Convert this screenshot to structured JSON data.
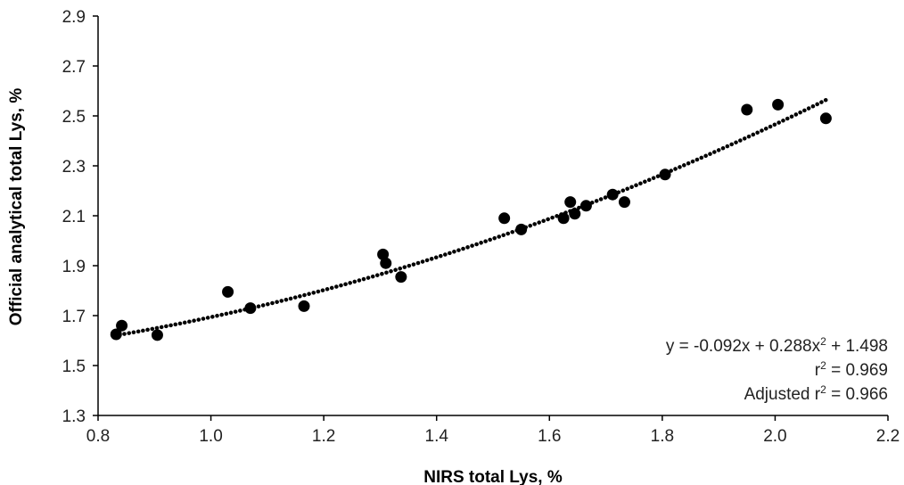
{
  "chart_data": {
    "type": "scatter",
    "title": "",
    "xlabel": "NIRS total Lys, %",
    "ylabel": "Official analytical total Lys, %",
    "xlim": [
      0.8,
      2.2
    ],
    "ylim": [
      1.3,
      2.9
    ],
    "x_ticks": [
      "0.8",
      "1.0",
      "1.2",
      "1.4",
      "1.6",
      "1.8",
      "2.0",
      "2.2"
    ],
    "y_ticks": [
      "1.3",
      "1.5",
      "1.7",
      "1.9",
      "2.1",
      "2.3",
      "2.5",
      "2.7",
      "2.9"
    ],
    "grid": false,
    "legend": false,
    "colors": {
      "points": "#000000",
      "trendline": "#000000",
      "axis": "#000000"
    },
    "series": [
      {
        "points": [
          [
            0.832,
            1.625
          ],
          [
            0.842,
            1.66
          ],
          [
            0.905,
            1.622
          ],
          [
            1.03,
            1.795
          ],
          [
            1.07,
            1.73
          ],
          [
            1.165,
            1.738
          ],
          [
            1.305,
            1.945
          ],
          [
            1.31,
            1.91
          ],
          [
            1.337,
            1.855
          ],
          [
            1.52,
            2.09
          ],
          [
            1.55,
            2.045
          ],
          [
            1.625,
            2.09
          ],
          [
            1.637,
            2.155
          ],
          [
            1.645,
            2.108
          ],
          [
            1.665,
            2.14
          ],
          [
            1.712,
            2.185
          ],
          [
            1.733,
            2.155
          ],
          [
            1.805,
            2.265
          ],
          [
            1.95,
            2.525
          ],
          [
            2.005,
            2.545
          ],
          [
            2.09,
            2.49
          ]
        ]
      }
    ],
    "trendline": {
      "type": "polynomial",
      "coefficients": {
        "a": 0.288,
        "b": -0.092,
        "c": 1.498
      },
      "x_range": [
        0.83,
        2.09
      ]
    },
    "annotations": {
      "equation": "y = -0.092x + 0.288x",
      "equation_sup": "2",
      "equation_tail": " + 1.498",
      "r2_prefix": "r",
      "r2_sup": "2",
      "r2_tail": " = 0.969",
      "adj_prefix": "Adjusted r",
      "adj_sup": "2",
      "adj_tail": " = 0.966"
    }
  }
}
